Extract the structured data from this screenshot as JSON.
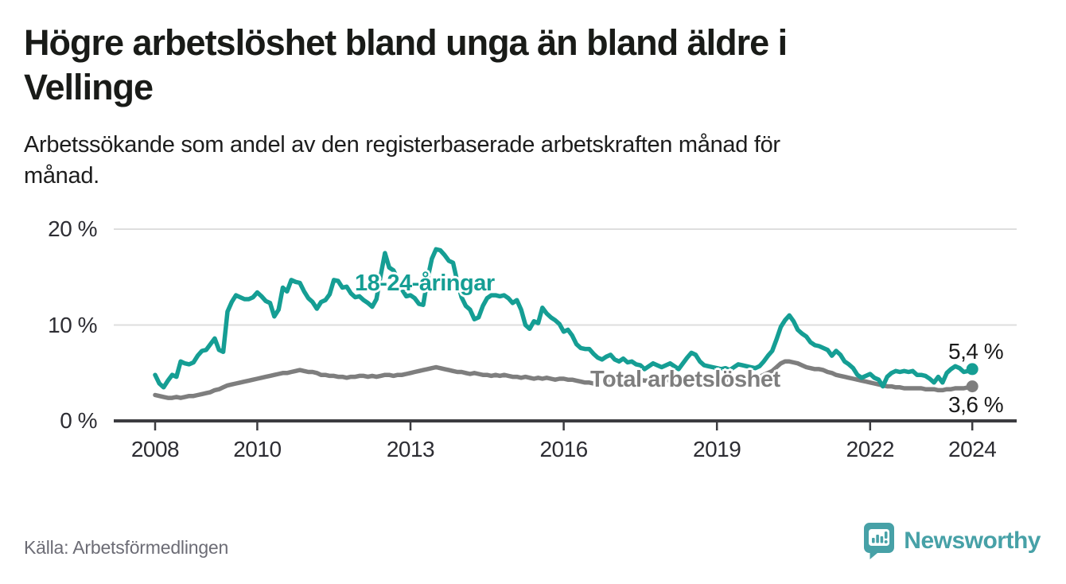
{
  "header": {
    "title_lines": [
      "Högre arbetslöshet bland unga än bland äldre i",
      "Vellinge"
    ],
    "subtitle_lines": [
      "Arbetssökande som andel av den registerbaserade arbetskraften månad för",
      "månad."
    ]
  },
  "chart_data": {
    "type": "line",
    "unit": "%",
    "x_start": "2008-01",
    "x_end": "2024-01",
    "x_interval": "monthly",
    "x_ticks": [
      "2008",
      "2010",
      "2013",
      "2016",
      "2019",
      "2022",
      "2024"
    ],
    "y_ticks": [
      {
        "value": 0,
        "label": "0 %"
      },
      {
        "value": 10,
        "label": "10 %"
      },
      {
        "value": 20,
        "label": "20 %"
      }
    ],
    "ylim": [
      0,
      20
    ],
    "grid": "horizontal",
    "legend_position": "inline-labels",
    "series": [
      {
        "name": "18-24-åringar",
        "color": "#159e94",
        "end_label": "5,4 %",
        "end_value": 5.4,
        "values": [
          4.8,
          3.9,
          3.5,
          4.2,
          4.8,
          4.6,
          6.2,
          6.0,
          5.9,
          6.1,
          6.8,
          7.3,
          7.4,
          8.0,
          8.6,
          7.4,
          7.2,
          11.4,
          12.4,
          13.1,
          12.9,
          12.7,
          12.7,
          12.9,
          13.4,
          13.0,
          12.5,
          12.3,
          10.9,
          11.6,
          13.9,
          13.5,
          14.7,
          14.5,
          14.4,
          13.5,
          12.8,
          12.4,
          11.7,
          12.4,
          12.6,
          13.2,
          14.7,
          14.6,
          13.9,
          14.0,
          13.3,
          12.9,
          13.0,
          12.6,
          12.3,
          11.9,
          12.7,
          15.2,
          17.5,
          16.0,
          15.7,
          14.8,
          13.7,
          13.0,
          13.1,
          12.8,
          12.2,
          12.1,
          14.8,
          16.9,
          17.9,
          17.8,
          17.3,
          16.7,
          16.5,
          14.5,
          12.9,
          12.0,
          11.6,
          10.6,
          10.8,
          12.0,
          12.8,
          13.1,
          13.1,
          13.0,
          13.1,
          12.8,
          12.3,
          12.6,
          11.6,
          10.0,
          9.6,
          10.4,
          10.2,
          11.8,
          11.2,
          10.8,
          10.5,
          10.1,
          9.3,
          9.5,
          8.9,
          8.0,
          7.6,
          7.5,
          7.5,
          7.0,
          6.6,
          6.4,
          6.7,
          6.9,
          6.4,
          6.2,
          6.5,
          6.1,
          6.2,
          5.9,
          5.8,
          5.4,
          5.7,
          6.0,
          5.8,
          5.6,
          5.8,
          6.0,
          5.7,
          5.4,
          6.0,
          6.6,
          7.1,
          6.9,
          6.2,
          5.8,
          5.7,
          5.6,
          5.5,
          5.4,
          5.5,
          5.3,
          5.6,
          5.9,
          5.8,
          5.7,
          5.6,
          5.5,
          5.7,
          6.2,
          6.8,
          7.3,
          8.5,
          9.8,
          10.5,
          11.0,
          10.4,
          9.5,
          9.1,
          8.8,
          8.2,
          7.9,
          7.8,
          7.6,
          7.4,
          6.8,
          7.3,
          6.9,
          6.2,
          5.9,
          5.5,
          4.8,
          4.5,
          4.7,
          4.9,
          4.5,
          4.3,
          3.6,
          4.6,
          5.0,
          5.2,
          5.1,
          5.2,
          5.1,
          5.2,
          4.8,
          4.8,
          4.7,
          4.4,
          4.0,
          4.6,
          4.0,
          5.0,
          5.4,
          5.7,
          5.5,
          5.1,
          5.2,
          5.4
        ]
      },
      {
        "name": "Total arbetslöshet",
        "color": "#7e7e7e",
        "end_label": "3,6 %",
        "end_value": 3.6,
        "values": [
          2.7,
          2.6,
          2.5,
          2.4,
          2.4,
          2.5,
          2.4,
          2.5,
          2.6,
          2.6,
          2.7,
          2.8,
          2.9,
          3.0,
          3.2,
          3.3,
          3.5,
          3.7,
          3.8,
          3.9,
          4.0,
          4.1,
          4.2,
          4.3,
          4.4,
          4.5,
          4.6,
          4.7,
          4.8,
          4.9,
          5.0,
          5.0,
          5.1,
          5.2,
          5.3,
          5.2,
          5.1,
          5.1,
          5.0,
          4.8,
          4.8,
          4.7,
          4.7,
          4.6,
          4.6,
          4.5,
          4.6,
          4.6,
          4.7,
          4.7,
          4.6,
          4.7,
          4.6,
          4.7,
          4.8,
          4.8,
          4.7,
          4.8,
          4.8,
          4.9,
          5.0,
          5.1,
          5.2,
          5.3,
          5.4,
          5.5,
          5.6,
          5.5,
          5.4,
          5.3,
          5.2,
          5.1,
          5.1,
          5.0,
          4.9,
          5.0,
          4.9,
          4.8,
          4.8,
          4.7,
          4.8,
          4.7,
          4.8,
          4.7,
          4.6,
          4.6,
          4.5,
          4.6,
          4.5,
          4.4,
          4.5,
          4.4,
          4.5,
          4.4,
          4.3,
          4.4,
          4.4,
          4.3,
          4.3,
          4.2,
          4.1,
          4.0,
          4.0,
          3.9,
          4.0,
          4.1,
          4.0,
          4.1,
          4.1,
          4.2,
          4.1,
          4.2,
          4.1,
          4.2,
          4.3,
          4.2,
          4.2,
          4.3,
          4.2,
          4.2,
          4.3,
          4.2,
          4.2,
          4.1,
          4.2,
          4.3,
          4.3,
          4.2,
          4.2,
          4.1,
          4.2,
          4.2,
          4.2,
          4.2,
          4.3,
          4.3,
          4.3,
          4.4,
          4.4,
          4.4,
          4.4,
          4.5,
          4.6,
          4.8,
          5.0,
          5.2,
          5.6,
          6.0,
          6.2,
          6.2,
          6.1,
          6.0,
          5.8,
          5.6,
          5.5,
          5.4,
          5.4,
          5.3,
          5.1,
          5.0,
          4.8,
          4.7,
          4.6,
          4.5,
          4.4,
          4.3,
          4.2,
          4.1,
          4.0,
          3.9,
          3.8,
          3.7,
          3.6,
          3.6,
          3.5,
          3.5,
          3.4,
          3.4,
          3.4,
          3.4,
          3.4,
          3.3,
          3.3,
          3.3,
          3.2,
          3.2,
          3.3,
          3.3,
          3.4,
          3.4,
          3.4,
          3.5,
          3.6
        ]
      }
    ]
  },
  "footer": {
    "source": "Källa: Arbetsförmedlingen",
    "logo_text": "Newsworthy"
  },
  "colors": {
    "accent_teal": "#159e94",
    "series_gray": "#7e7e7e",
    "logo_teal": "#47a1a7",
    "axis": "#3c3c40",
    "gridline": "#dedede"
  }
}
